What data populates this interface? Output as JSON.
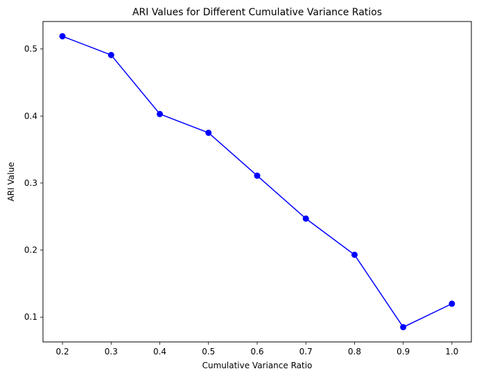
{
  "chart_data": {
    "type": "line",
    "title": "ARI Values for Different Cumulative Variance Ratios",
    "xlabel": "Cumulative Variance Ratio",
    "ylabel": "ARI Value",
    "x": [
      0.2,
      0.3,
      0.4,
      0.5,
      0.6,
      0.7,
      0.8,
      0.9,
      1.0
    ],
    "series": [
      {
        "values": [
          0.519,
          0.491,
          0.403,
          0.375,
          0.311,
          0.247,
          0.193,
          0.085,
          0.12
        ],
        "color": "#0000ff",
        "marker": "circle"
      }
    ],
    "xlim": [
      0.16,
      1.04
    ],
    "ylim": [
      0.063,
      0.541
    ],
    "xticks": [
      0.2,
      0.3,
      0.4,
      0.5,
      0.6,
      0.7,
      0.8,
      0.9,
      1.0
    ],
    "xtick_labels": [
      "0.2",
      "0.3",
      "0.4",
      "0.5",
      "0.6",
      "0.7",
      "0.8",
      "0.9",
      "1.0"
    ],
    "yticks": [
      0.1,
      0.2,
      0.3,
      0.4,
      0.5
    ],
    "ytick_labels": [
      "0.1",
      "0.2",
      "0.3",
      "0.4",
      "0.5"
    ],
    "grid": false,
    "legend": false
  }
}
